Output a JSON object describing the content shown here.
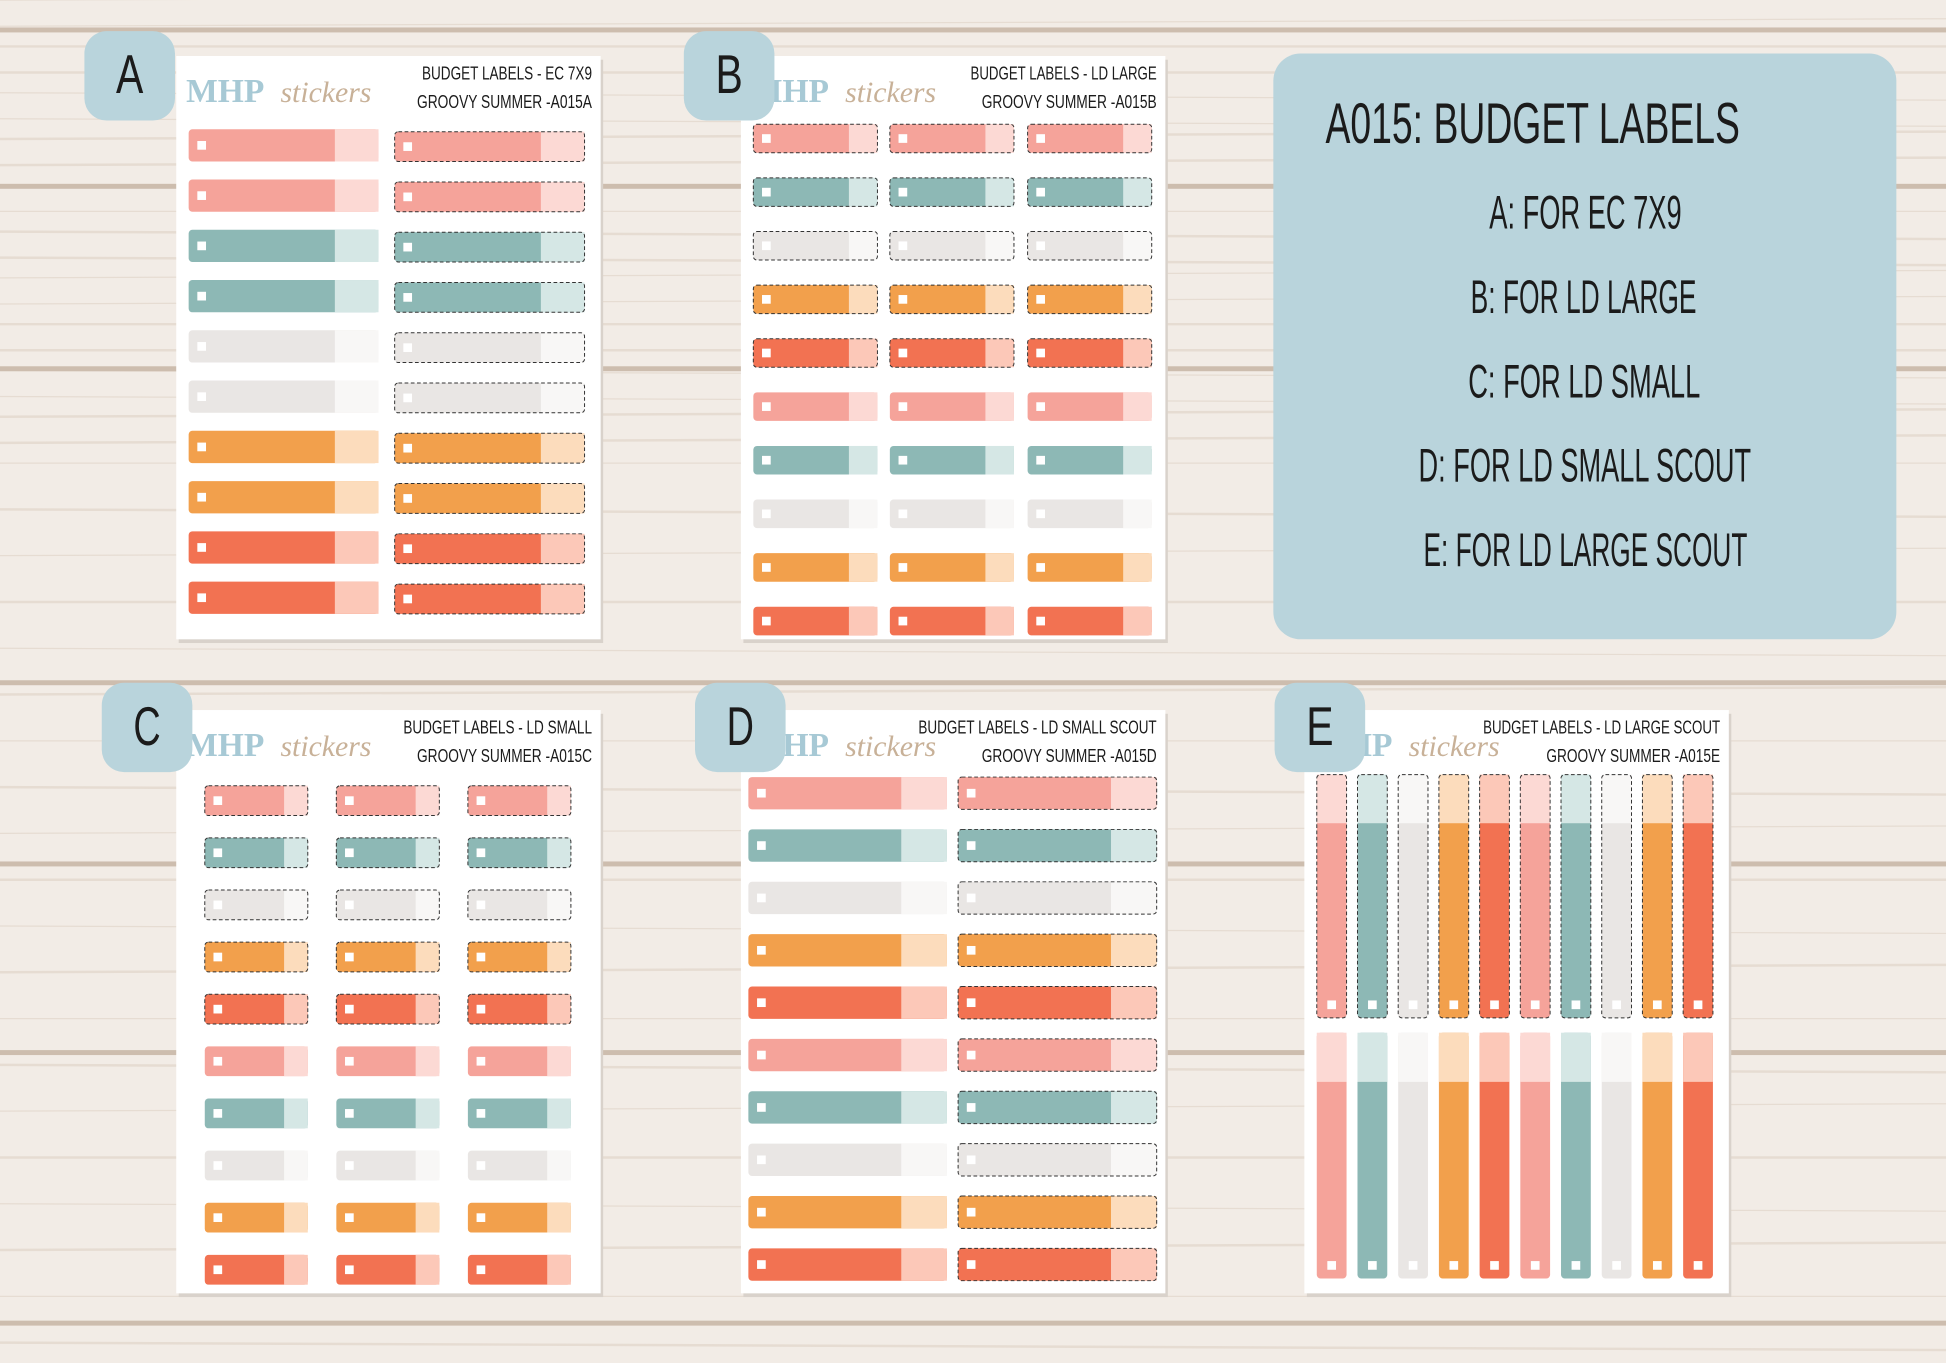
{
  "sheets": [
    {
      "badge": "A",
      "brand": "MHP",
      "brand_script": "stickers",
      "title": "BUDGET LABELS - EC 7X9",
      "subtitle": "GROOVY SUMMER -A015A"
    },
    {
      "badge": "B",
      "brand": "MHP",
      "brand_script": "stickers",
      "title": "BUDGET LABELS - LD LARGE",
      "subtitle": "GROOVY SUMMER -A015B"
    },
    {
      "badge": "C",
      "brand": "MHP",
      "brand_script": "stickers",
      "title": "BUDGET LABELS - LD SMALL",
      "subtitle": "GROOVY SUMMER -A015C"
    },
    {
      "badge": "D",
      "brand": "MHP",
      "brand_script": "stickers",
      "title": "BUDGET LABELS - LD SMALL SCOUT",
      "subtitle": "GROOVY SUMMER -A015D"
    },
    {
      "badge": "E",
      "brand": "MHP",
      "brand_script": "stickers",
      "title": "BUDGET LABELS - LD LARGE SCOUT",
      "subtitle": "GROOVY SUMMER -A015E"
    }
  ],
  "info": {
    "title": "A015: BUDGET LABELS",
    "lines": [
      "A: FOR EC 7X9",
      "B: FOR LD LARGE",
      "C: FOR LD SMALL",
      "D: FOR LD SMALL SCOUT",
      "E: FOR LD LARGE SCOUT"
    ]
  }
}
